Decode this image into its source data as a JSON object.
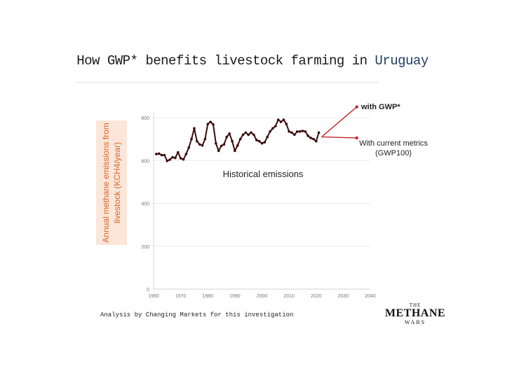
{
  "header": {
    "title_prefix": "How GWP* benefits livestock farming in ",
    "title_accent": "Uruguay"
  },
  "footnote": "Analysis by Changing Markets for this investigation",
  "logo": {
    "top": "THE",
    "main": "METHANE",
    "bottom": "WARS"
  },
  "colors": {
    "accent_blue": "#1f3a5f",
    "label_orange": "#d8672b",
    "series_dark": "#3b0c0c",
    "series_red": "#c0282d"
  },
  "chart_data": {
    "type": "line",
    "ylabel": "Annual methane emissions from livestock (KCH4/year)",
    "xlim": [
      1960,
      2040
    ],
    "ylim": [
      0,
      800
    ],
    "x_ticks": [
      1960,
      1970,
      1980,
      1990,
      2000,
      2010,
      2020,
      2030,
      2040
    ],
    "y_ticks": [
      0,
      200,
      400,
      600,
      800
    ],
    "grid": true,
    "annotations": {
      "historical": "Historical emissions",
      "gwp_star": "with GWP*",
      "current_line1": "With current metrics",
      "current_line2": "(GWP100)"
    },
    "series": [
      {
        "values_x": [
          1961,
          1962,
          1963,
          1964,
          1965,
          1966,
          1967,
          1968,
          1969,
          1970,
          1971,
          1972,
          1973,
          1974,
          1975,
          1976,
          1977,
          1978,
          1979,
          1980,
          1981,
          1982,
          1983,
          1984,
          1985,
          1986,
          1987,
          1988,
          1989,
          1990,
          1991,
          1992,
          1993,
          1994,
          1995,
          1996,
          1997,
          1998,
          1999,
          2000,
          2001,
          2002,
          2003,
          2004,
          2005,
          2006,
          2007,
          2008,
          2009,
          2010,
          2011,
          2012,
          2013,
          2014,
          2015,
          2016,
          2017,
          2018,
          2019,
          2020,
          2021
        ],
        "values_y": [
          630,
          632,
          625,
          625,
          598,
          604,
          615,
          612,
          638,
          610,
          605,
          630,
          660,
          700,
          750,
          690,
          675,
          670,
          700,
          770,
          780,
          768,
          680,
          645,
          668,
          675,
          710,
          725,
          690,
          645,
          670,
          700,
          720,
          730,
          720,
          730,
          720,
          695,
          690,
          680,
          685,
          710,
          735,
          750,
          760,
          790,
          780,
          790,
          770,
          735,
          730,
          720,
          735,
          735,
          738,
          735,
          715,
          705,
          700,
          690,
          730
        ],
        "color": "#3b0c0c"
      },
      {
        "values_x": [
          2022,
          2035
        ],
        "values_y": [
          710,
          850
        ],
        "color": "#c0282d"
      },
      {
        "values_x": [
          2022,
          2035
        ],
        "values_y": [
          710,
          705
        ],
        "color": "#c0282d"
      }
    ]
  }
}
